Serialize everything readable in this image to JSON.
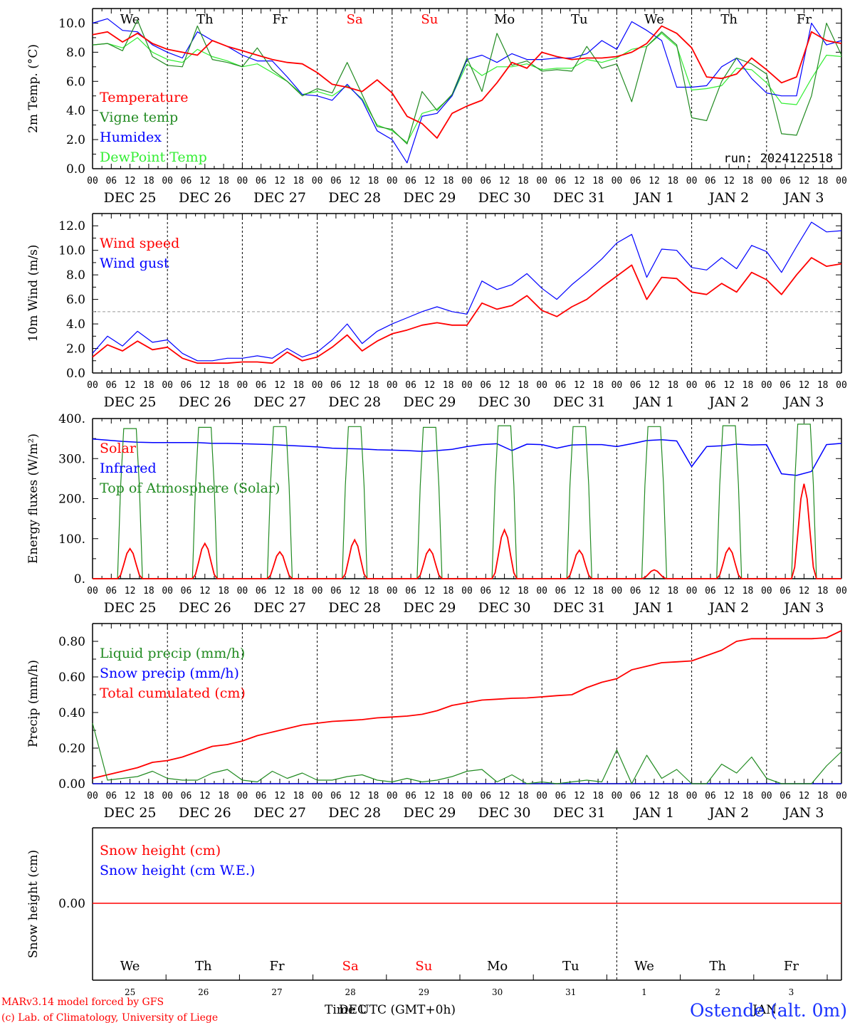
{
  "run_label": "run: 2024122518",
  "credits": {
    "line1": "MARv3.14 model forced by GFS",
    "line2": "(c) Lab. of Climatology, University of Liege"
  },
  "station": "Ostende (alt. 0m)",
  "time_axis": {
    "xlabel": "Time UTC (GMT+0h)",
    "month_overlap_1": "DEC",
    "month_overlap_2": "JAN",
    "hour_ticks": [
      "00",
      "06",
      "12",
      "18"
    ],
    "days": [
      "DEC 25",
      "DEC 26",
      "DEC 27",
      "DEC 28",
      "DEC 29",
      "DEC 30",
      "DEC 31",
      "JAN  1",
      "JAN  2",
      "JAN  3"
    ],
    "weekdays": [
      "We",
      "Th",
      "Fr",
      "Sa",
      "Su",
      "Mo",
      "Tu",
      "We",
      "Th",
      "Fr"
    ],
    "weekend_color": "#ff0000",
    "weekday_color": "#000000",
    "day_numbers": [
      "25",
      "26",
      "27",
      "28",
      "29",
      "30",
      "31",
      "1",
      "2",
      "3"
    ]
  },
  "colors": {
    "red": "#ff0000",
    "green": "#228b22",
    "blue": "#0000ff",
    "lightgreen": "#33ee33",
    "grid": "#000000"
  },
  "chart_data": [
    {
      "id": "temperature",
      "type": "line",
      "ylabel": "2m Temp. (°C)",
      "ylim": [
        0,
        11
      ],
      "yticks": [
        "0.0",
        "2.0",
        "4.0",
        "6.0",
        "8.0",
        "10.0"
      ],
      "ytick_values": [
        0,
        2,
        4,
        6,
        8,
        10
      ],
      "x_hours_step": 6,
      "series": [
        {
          "name": "Temperature",
          "color": "red",
          "values": [
            9.2,
            9.4,
            8.7,
            9.3,
            8.6,
            8.2,
            8.0,
            7.8,
            8.8,
            8.4,
            8.1,
            7.8,
            7.5,
            7.3,
            7.2,
            6.6,
            5.8,
            5.6,
            5.3,
            6.1,
            5.2,
            3.6,
            3.1,
            2.1,
            3.8,
            4.3,
            4.7,
            5.9,
            7.3,
            6.9,
            8.0,
            7.7,
            7.5,
            7.6,
            7.6,
            7.7,
            8.0,
            8.6,
            9.8,
            9.3,
            8.3,
            6.3,
            6.2,
            6.5,
            7.6,
            6.8,
            5.9,
            6.3,
            9.4,
            8.8,
            8.6
          ]
        },
        {
          "name": "Vigne temp",
          "color": "green",
          "values": [
            8.5,
            8.6,
            8.1,
            10.2,
            7.7,
            7.1,
            7.0,
            9.8,
            7.5,
            7.3,
            7.0,
            8.3,
            6.8,
            6.0,
            5.0,
            5.5,
            5.2,
            7.3,
            5.1,
            2.9,
            2.7,
            1.7,
            5.3,
            4.0,
            5.1,
            7.6,
            5.3,
            9.3,
            7.1,
            7.4,
            6.7,
            6.8,
            6.7,
            8.4,
            6.9,
            7.2,
            4.6,
            8.4,
            9.4,
            8.5,
            3.5,
            3.3,
            6.0,
            7.6,
            7.2,
            6.5,
            2.4,
            2.3,
            5.0,
            10.0,
            7.8
          ]
        },
        {
          "name": "Humidex",
          "color": "blue",
          "values": [
            10.0,
            10.3,
            9.5,
            9.4,
            8.5,
            8.0,
            7.6,
            9.4,
            8.8,
            8.4,
            7.8,
            7.4,
            7.4,
            6.3,
            5.1,
            5.0,
            4.7,
            5.8,
            4.7,
            2.6,
            2.0,
            0.4,
            3.6,
            3.8,
            5.0,
            7.5,
            7.8,
            7.3,
            7.9,
            7.5,
            7.5,
            7.6,
            7.6,
            7.9,
            8.8,
            8.2,
            10.1,
            9.5,
            8.8,
            5.6,
            5.6,
            5.7,
            7.0,
            7.6,
            6.2,
            5.2,
            5.0,
            5.0,
            10.0,
            8.5,
            8.8
          ]
        },
        {
          "name": "DewPoint Temp",
          "color": "lightgreen",
          "values": [
            8.5,
            8.6,
            8.3,
            9.0,
            8.0,
            7.5,
            7.3,
            8.2,
            7.7,
            7.4,
            7.0,
            7.2,
            6.6,
            6.0,
            5.1,
            5.3,
            5.0,
            5.7,
            4.8,
            3.0,
            2.6,
            1.8,
            3.8,
            4.1,
            5.0,
            7.2,
            6.4,
            7.0,
            7.0,
            7.2,
            6.8,
            6.9,
            6.9,
            7.5,
            7.3,
            7.6,
            8.2,
            8.4,
            9.3,
            8.4,
            5.4,
            5.5,
            5.7,
            6.9,
            6.8,
            5.9,
            4.5,
            4.4,
            6.2,
            7.8,
            7.7
          ]
        }
      ]
    },
    {
      "id": "wind",
      "type": "line",
      "ylabel": "10m Wind (m/s)",
      "ylim": [
        0,
        13
      ],
      "yticks": [
        "0.0",
        "2.0",
        "4.0",
        "6.0",
        "8.0",
        "10.0",
        "12.0"
      ],
      "ytick_values": [
        0,
        2,
        4,
        6,
        8,
        10,
        12
      ],
      "reference_line": 5,
      "series": [
        {
          "name": "Wind speed",
          "color": "red",
          "values": [
            1.3,
            2.3,
            1.8,
            2.6,
            1.9,
            2.1,
            1.2,
            0.8,
            0.8,
            0.8,
            0.9,
            0.9,
            0.8,
            1.7,
            1.0,
            1.3,
            2.1,
            3.1,
            1.8,
            2.6,
            3.2,
            3.5,
            3.9,
            4.1,
            3.9,
            3.9,
            5.7,
            5.2,
            5.5,
            6.3,
            5.1,
            4.6,
            5.4,
            6.0,
            7.0,
            7.9,
            8.8,
            6.0,
            7.8,
            7.7,
            6.6,
            6.4,
            7.3,
            6.6,
            8.2,
            7.6,
            6.4,
            8.0,
            9.4,
            8.7,
            8.9
          ]
        },
        {
          "name": "Wind gust",
          "color": "blue",
          "values": [
            1.6,
            3.0,
            2.2,
            3.4,
            2.5,
            2.7,
            1.6,
            1.0,
            1.0,
            1.2,
            1.2,
            1.4,
            1.2,
            2.0,
            1.3,
            1.7,
            2.7,
            4.0,
            2.4,
            3.4,
            4.0,
            4.5,
            5.0,
            5.4,
            5.0,
            4.8,
            7.5,
            6.8,
            7.2,
            8.1,
            6.9,
            6.0,
            7.2,
            8.2,
            9.3,
            10.6,
            11.3,
            7.8,
            10.1,
            10.0,
            8.6,
            8.4,
            9.4,
            8.5,
            10.4,
            9.9,
            8.2,
            10.3,
            12.3,
            11.5,
            11.6
          ]
        }
      ]
    },
    {
      "id": "energy",
      "type": "line",
      "ylabel": "Energy fluxes (W/m²)",
      "ylim": [
        0,
        400
      ],
      "yticks": [
        "0.",
        "100.",
        "200.",
        "300.",
        "400."
      ],
      "ytick_values": [
        0,
        100,
        200,
        300,
        400
      ],
      "series": [
        {
          "name": "Solar",
          "color": "red",
          "peaks": [
            75,
            88,
            67,
            97,
            74,
            122,
            71,
            22,
            77,
            237
          ]
        },
        {
          "name": "Infrared",
          "color": "blue",
          "values": [
            349,
            346,
            343,
            341,
            340,
            340,
            340,
            340,
            338,
            338,
            337,
            336,
            335,
            333,
            331,
            329,
            326,
            325,
            324,
            322,
            321,
            320,
            318,
            320,
            323,
            330,
            335,
            337,
            320,
            336,
            335,
            326,
            334,
            335,
            335,
            330,
            337,
            345,
            347,
            344,
            280,
            330,
            332,
            336,
            334,
            335,
            262,
            258,
            268,
            335,
            338
          ]
        },
        {
          "name": "Top of Atmosphere (Solar)",
          "color": "green",
          "peaks": [
            375,
            378,
            380,
            380,
            378,
            382,
            380,
            380,
            382,
            386
          ]
        }
      ]
    },
    {
      "id": "precip",
      "type": "line",
      "ylabel": "Precip (mm/h)",
      "ylim": [
        0,
        0.9
      ],
      "yticks": [
        "0.00",
        "0.20",
        "0.40",
        "0.60",
        "0.80"
      ],
      "ytick_values": [
        0,
        0.2,
        0.4,
        0.6,
        0.8
      ],
      "series": [
        {
          "name": "Liquid precip (mm/h)",
          "color": "green",
          "values": [
            0.34,
            0.02,
            0.03,
            0.04,
            0.07,
            0.03,
            0.02,
            0.02,
            0.06,
            0.08,
            0.02,
            0.01,
            0.07,
            0.03,
            0.06,
            0.02,
            0.02,
            0.04,
            0.05,
            0.02,
            0.01,
            0.03,
            0.01,
            0.02,
            0.04,
            0.07,
            0.08,
            0.01,
            0.05,
            0.0,
            0.01,
            0.0,
            0.01,
            0.02,
            0.01,
            0.19,
            0.0,
            0.16,
            0.03,
            0.08,
            0.0,
            0.0,
            0.11,
            0.06,
            0.15,
            0.03,
            0.0,
            0.0,
            0.0,
            0.1,
            0.18
          ]
        },
        {
          "name": "Snow precip (mm/h)",
          "color": "blue",
          "values": [
            0,
            0,
            0,
            0,
            0,
            0,
            0,
            0,
            0,
            0,
            0,
            0,
            0,
            0,
            0,
            0,
            0,
            0,
            0,
            0,
            0,
            0,
            0,
            0,
            0,
            0,
            0,
            0,
            0,
            0,
            0,
            0,
            0,
            0,
            0,
            0,
            0,
            0,
            0,
            0,
            0,
            0,
            0,
            0,
            0,
            0,
            0,
            0,
            0,
            0,
            0
          ]
        },
        {
          "name": "Total cumulated (cm)",
          "color": "red",
          "values": [
            0.03,
            0.05,
            0.07,
            0.09,
            0.12,
            0.13,
            0.15,
            0.18,
            0.21,
            0.22,
            0.24,
            0.27,
            0.29,
            0.31,
            0.33,
            0.34,
            0.35,
            0.355,
            0.36,
            0.37,
            0.375,
            0.38,
            0.39,
            0.41,
            0.44,
            0.455,
            0.47,
            0.475,
            0.48,
            0.482,
            0.488,
            0.495,
            0.5,
            0.54,
            0.57,
            0.59,
            0.64,
            0.66,
            0.68,
            0.685,
            0.69,
            0.72,
            0.75,
            0.8,
            0.815,
            0.815,
            0.815,
            0.815,
            0.815,
            0.82,
            0.86
          ]
        }
      ]
    },
    {
      "id": "snow",
      "type": "line",
      "ylabel": "Snow height (cm)",
      "yticks": [
        "0.00"
      ],
      "series": [
        {
          "name": "Snow height (cm)",
          "color": "red",
          "values": [
            0,
            0,
            0,
            0,
            0,
            0,
            0,
            0,
            0,
            0,
            0
          ]
        },
        {
          "name": "Snow height (cm W.E.)",
          "color": "blue",
          "values": [
            0,
            0,
            0,
            0,
            0,
            0,
            0,
            0,
            0,
            0,
            0
          ]
        }
      ]
    }
  ]
}
